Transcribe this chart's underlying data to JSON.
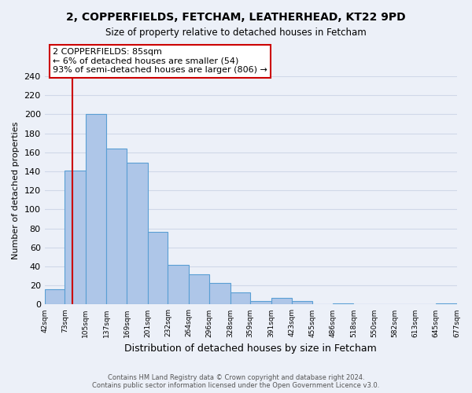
{
  "title1": "2, COPPERFIELDS, FETCHAM, LEATHERHEAD, KT22 9PD",
  "title2": "Size of property relative to detached houses in Fetcham",
  "xlabel": "Distribution of detached houses by size in Fetcham",
  "ylabel": "Number of detached properties",
  "bin_edges": [
    42,
    73,
    105,
    137,
    169,
    201,
    232,
    264,
    296,
    328,
    359,
    391,
    423,
    455,
    486,
    518,
    550,
    582,
    613,
    645,
    677
  ],
  "bin_labels": [
    "42sqm",
    "73sqm",
    "105sqm",
    "137sqm",
    "169sqm",
    "201sqm",
    "232sqm",
    "264sqm",
    "296sqm",
    "328sqm",
    "359sqm",
    "391sqm",
    "423sqm",
    "455sqm",
    "486sqm",
    "518sqm",
    "550sqm",
    "582sqm",
    "613sqm",
    "645sqm",
    "677sqm"
  ],
  "counts": [
    16,
    141,
    200,
    164,
    149,
    76,
    42,
    32,
    23,
    13,
    4,
    7,
    4,
    0,
    1,
    0,
    0,
    0,
    0,
    1
  ],
  "bar_color": "#aec6e8",
  "bar_edge_color": "#5a9fd4",
  "property_line_x": 85,
  "property_line_color": "#cc0000",
  "annotation_line1": "2 COPPERFIELDS: 85sqm",
  "annotation_line2": "← 6% of detached houses are smaller (54)",
  "annotation_line3": "93% of semi-detached houses are larger (806) →",
  "annotation_box_color": "#ffffff",
  "annotation_box_edge": "#cc0000",
  "ylim": [
    0,
    240
  ],
  "yticks": [
    0,
    20,
    40,
    60,
    80,
    100,
    120,
    140,
    160,
    180,
    200,
    220,
    240
  ],
  "footer_line1": "Contains HM Land Registry data © Crown copyright and database right 2024.",
  "footer_line2": "Contains public sector information licensed under the Open Government Licence v3.0.",
  "bg_color": "#ecf0f8",
  "grid_color": "#d0d8e8"
}
